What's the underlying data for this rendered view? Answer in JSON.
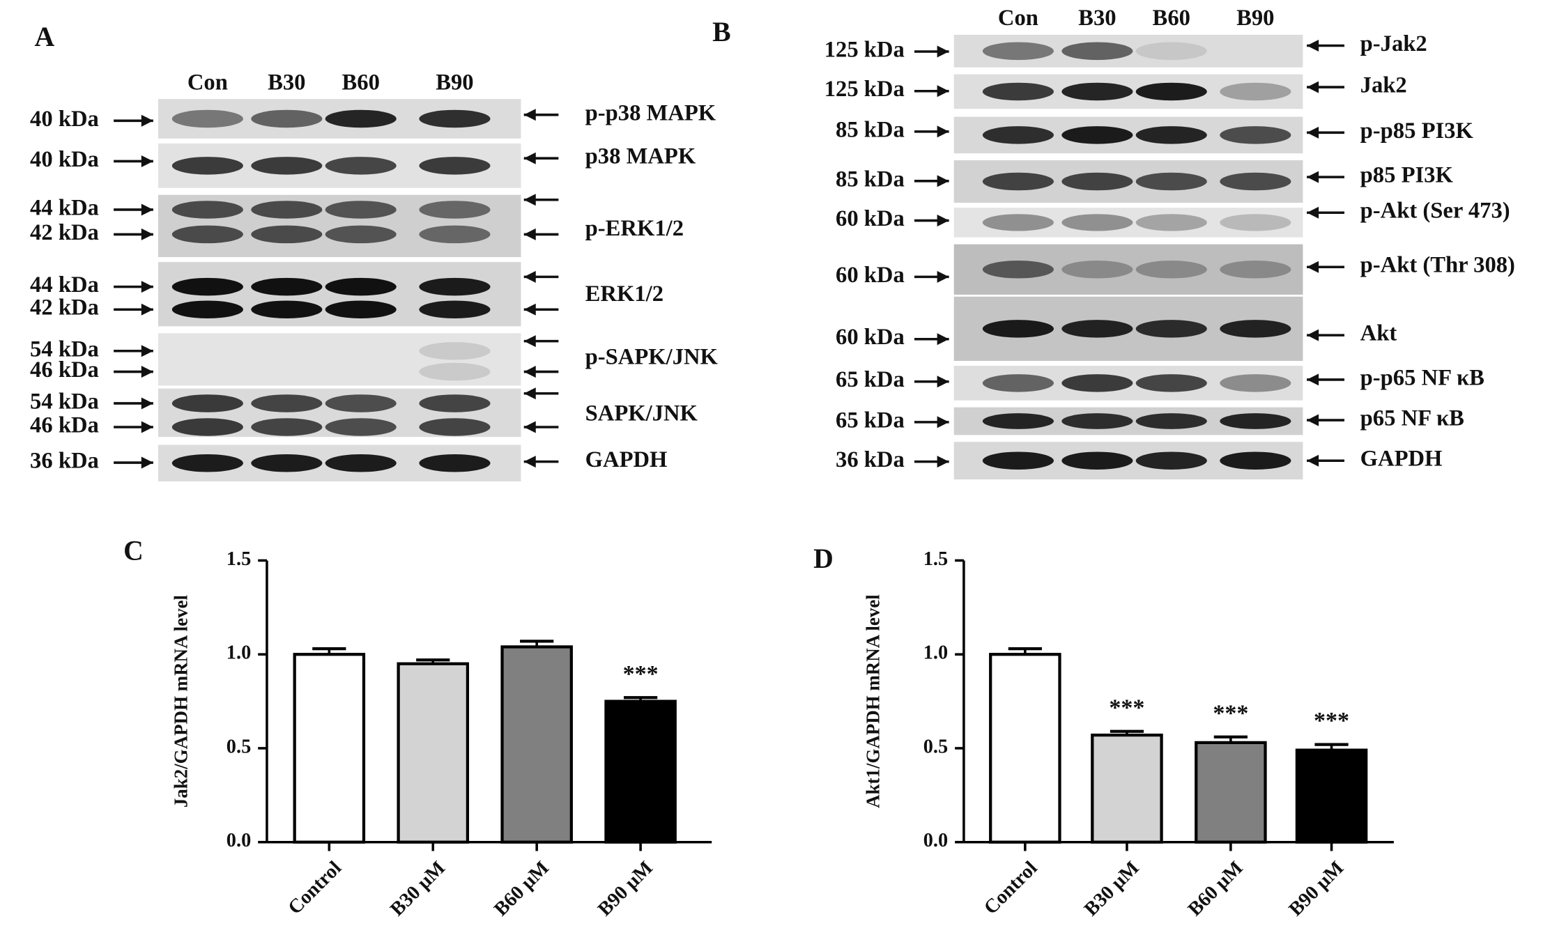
{
  "panels": [
    {
      "label": "A",
      "lanes": [
        "Con",
        "B30",
        "B60",
        "B90"
      ],
      "rows": [
        {
          "name": "p-p38 MAPK",
          "sizes": [
            "40 kDa"
          ]
        },
        {
          "name": "p38 MAPK",
          "sizes": [
            "40 kDa"
          ]
        },
        {
          "name": "p-ERK1/2",
          "sizes": [
            "44 kDa",
            "42 kDa"
          ]
        },
        {
          "name": "ERK1/2",
          "sizes": [
            "44 kDa",
            "42 kDa"
          ]
        },
        {
          "name": "p-SAPK/JNK",
          "sizes": [
            "54 kDa",
            "46 kDa"
          ]
        },
        {
          "name": "SAPK/JNK",
          "sizes": [
            "54 kDa",
            "46 kDa"
          ]
        },
        {
          "name": "GAPDH",
          "sizes": [
            "36 kDa"
          ]
        }
      ]
    },
    {
      "label": "B",
      "lanes": [
        "Con",
        "B30",
        "B60",
        "B90"
      ],
      "rows": [
        {
          "name": "p-Jak2",
          "sizes": [
            "125 kDa"
          ]
        },
        {
          "name": "Jak2",
          "sizes": [
            "125 kDa"
          ]
        },
        {
          "name": "p-p85 PI3K",
          "sizes": [
            "85 kDa"
          ]
        },
        {
          "name": "p85 PI3K",
          "sizes": [
            "85 kDa"
          ]
        },
        {
          "name": "p-Akt (Ser 473)",
          "sizes": [
            "60 kDa"
          ]
        },
        {
          "name": "p-Akt (Thr 308)",
          "sizes": [
            "60 kDa"
          ]
        },
        {
          "name": "Akt",
          "sizes": [
            "60 kDa"
          ]
        },
        {
          "name": "p-p65 NF κB",
          "sizes": [
            "65 kDa"
          ]
        },
        {
          "name": "p65 NF κB",
          "sizes": [
            "65 kDa"
          ]
        },
        {
          "name": "GAPDH",
          "sizes": [
            "36 kDa"
          ]
        }
      ]
    }
  ],
  "chart_data": [
    {
      "type": "bar",
      "panel": "C",
      "y_label": "Jak2/GAPDH mRNA level",
      "categories": [
        "Control",
        "B30 μM",
        "B60 μM",
        "B90 μM"
      ],
      "values": [
        1.0,
        0.95,
        1.04,
        0.75
      ],
      "errors": [
        0.03,
        0.02,
        0.03,
        0.02
      ],
      "significance": [
        null,
        null,
        null,
        "***"
      ],
      "colors": [
        "#ffffff",
        "#d3d3d3",
        "#808080",
        "#000000"
      ],
      "ylim": [
        0,
        1.5
      ],
      "yticks": [
        {
          "value": 0,
          "label": "0.0"
        },
        0.5,
        {
          "value": 1,
          "label": "1.0"
        },
        1.5
      ]
    },
    {
      "type": "bar",
      "panel": "D",
      "y_label": "Akt1/GAPDH mRNA level",
      "categories": [
        "Control",
        "B30 μM",
        "B60 μM",
        "B90 μM"
      ],
      "values": [
        1.0,
        0.57,
        0.53,
        0.49
      ],
      "errors": [
        0.03,
        0.02,
        0.03,
        0.03
      ],
      "significance": [
        null,
        "***",
        "***",
        "***"
      ],
      "colors": [
        "#ffffff",
        "#d3d3d3",
        "#808080",
        "#000000"
      ],
      "ylim": [
        0,
        1.5
      ],
      "yticks": [
        {
          "value": 0,
          "label": "0.0"
        },
        0.5,
        {
          "value": 1,
          "label": "1.0"
        },
        1.5
      ]
    }
  ]
}
